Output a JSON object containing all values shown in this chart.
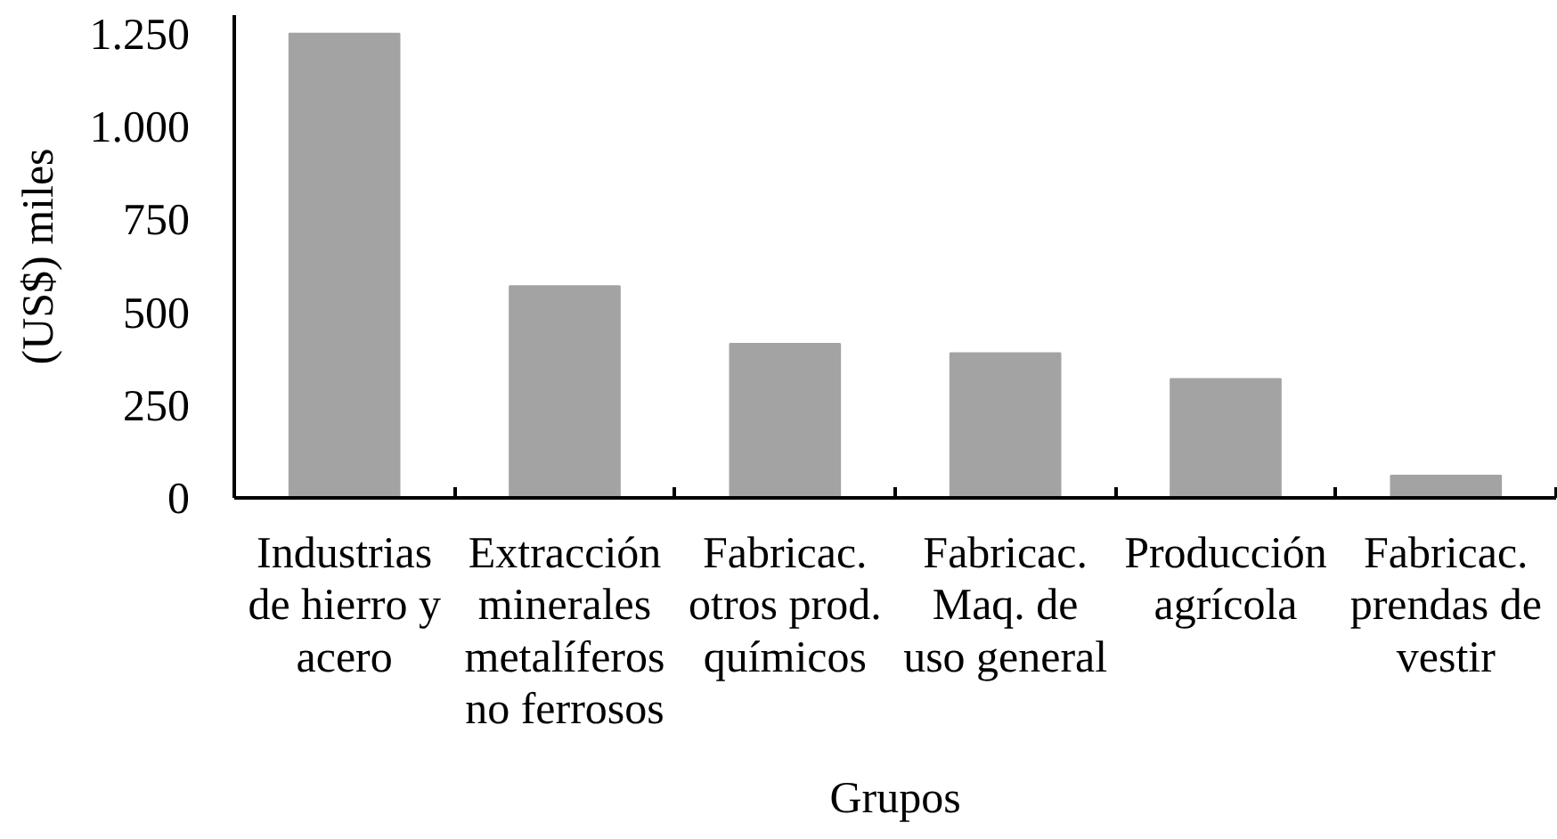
{
  "chart_data": {
    "type": "bar",
    "categories": [
      "Industrias\nde hierro y\nacero",
      "Extracción\nminerales\nmetalíferos\nno ferrosos",
      "Fabricac.\notros prod.\nquímicos",
      "Fabricac.\nMaq. de\nuso general",
      "Producción\nagrícola",
      "Fabricac.\nprendas de\nvestir"
    ],
    "values": [
      1250,
      570,
      415,
      390,
      320,
      60
    ],
    "color": "#a3a3a3",
    "ylim": [
      0,
      1300
    ],
    "yticks": [
      0,
      250,
      500,
      750,
      {
        "value": 1000,
        "label": "1.000"
      },
      {
        "value": 1250,
        "label": "1.250"
      }
    ],
    "ylabel": "(US$) miles",
    "xlabel": "Grupos"
  }
}
